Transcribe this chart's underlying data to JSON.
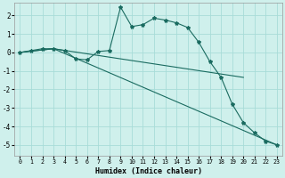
{
  "title": "",
  "xlabel": "Humidex (Indice chaleur)",
  "bg_color": "#cff0ec",
  "grid_color": "#a8dcd8",
  "line_color": "#1a6b60",
  "xlim": [
    -0.5,
    23.5
  ],
  "ylim": [
    -5.6,
    2.7
  ],
  "yticks": [
    -5,
    -4,
    -3,
    -2,
    -1,
    0,
    1,
    2
  ],
  "xticks": [
    0,
    1,
    2,
    3,
    4,
    5,
    6,
    7,
    8,
    9,
    10,
    11,
    12,
    13,
    14,
    15,
    16,
    17,
    18,
    19,
    20,
    21,
    22,
    23
  ],
  "series_main": {
    "x": [
      0,
      1,
      2,
      3,
      4,
      5,
      6,
      7,
      8,
      9,
      10,
      11,
      12,
      13,
      14,
      15,
      16,
      17,
      18,
      19,
      20,
      21,
      22,
      23
    ],
    "y": [
      0.0,
      0.1,
      0.2,
      0.2,
      0.1,
      -0.35,
      -0.4,
      0.05,
      0.1,
      2.45,
      1.4,
      1.5,
      1.85,
      1.75,
      1.6,
      1.35,
      0.55,
      -0.5,
      -1.35,
      -2.8,
      -3.8,
      -4.35,
      -4.8,
      -5.0
    ]
  },
  "series_upper": {
    "x": [
      0,
      3,
      20
    ],
    "y": [
      0.0,
      0.2,
      -1.35
    ]
  },
  "series_lower": {
    "x": [
      0,
      3,
      23
    ],
    "y": [
      0.0,
      0.2,
      -5.0
    ]
  }
}
